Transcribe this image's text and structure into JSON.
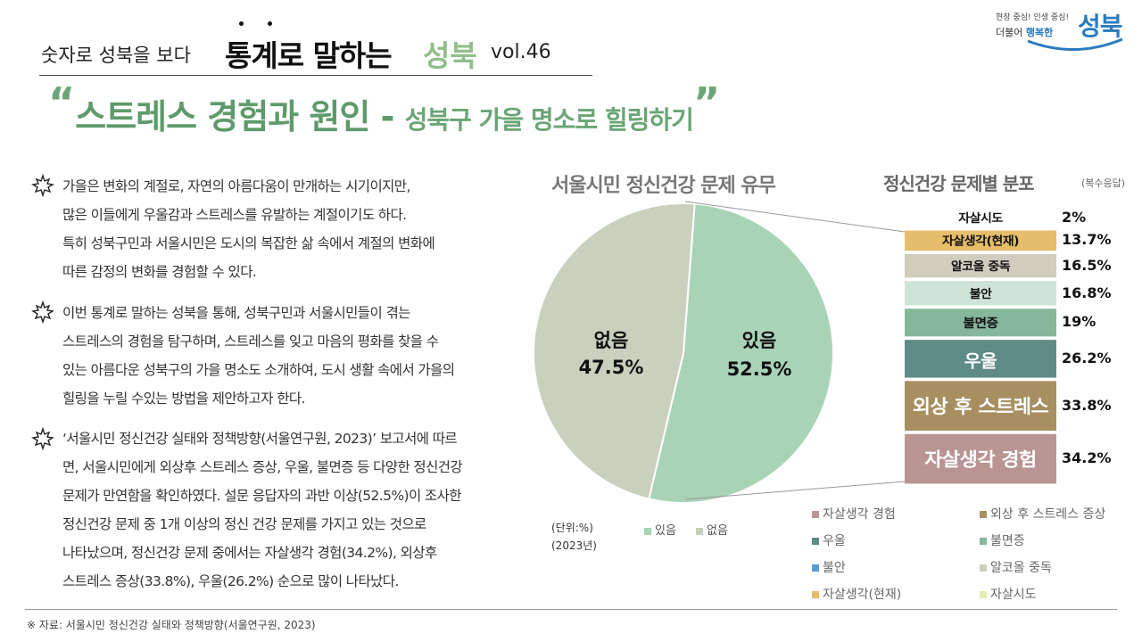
{
  "header": {
    "pre_title": "숫자로 성북을 보다",
    "main_title": "통계로 말하는",
    "brand_word": "성북",
    "volume": "vol.46"
  },
  "logo": {
    "tagline_a": "현장 중심!",
    "tagline_b": "인생 중심!",
    "line_a": "더불어",
    "line_b": "행복한",
    "main": "성북"
  },
  "headline": {
    "open_quote": "“",
    "main": "스트레스 경험과 원인",
    "dash": " - ",
    "sub": "성북구 가을 명소로 힐링하기",
    "close_quote": "”"
  },
  "paragraphs": [
    [
      "가을은 변화의 계절로, 자연의 아름다움이 만개하는 시기이지만,",
      "많은 이들에게 우울감과 스트레스를 유발하는 계절이기도 하다.",
      "특히 성북구민과 서울시민은 도시의 복잡한 삶 속에서 계절의 변화에",
      "따른 감정의 변화를 경험할 수 있다."
    ],
    [
      "이번 통계로 말하는 성북을 통해, 성북구민과 서울시민들이 겪는",
      "스트레스의 경험을 탐구하며, 스트레스를 잊고 마음의 평화를 찾을 수",
      "있는 아름다운 성북구의 가을 명소도 소개하여, 도시 생활 속에서 가을의",
      "힐링을 누릴 수있는 방법을 제안하고자 한다."
    ],
    [
      "‘서울시민 정신건강 실태와 정책방향(서울연구원, 2023)’ 보고서에 따르",
      "면, 서울시민에게 외상후 스트레스 증상, 우울, 불면증 등 다양한 정신건강",
      "문제가 만연함을 확인하였다. 설문 응답자의 과반 이상(52.5%)이 조사한",
      "정신건강 문제 중 1개 이상의 정신 건강 문제를 가지고 있는 것으로",
      "나타났으며, 정신건강 문제 중에서는 자살생각 경험(34.2%), 외상후",
      "스트레스 증상(33.8%), 우울(26.2%) 순으로 많이 나타났다."
    ]
  ],
  "chart_data": [
    {
      "type": "pie",
      "title": "서울시민 정신건강 문제 유무",
      "categories": [
        "있음",
        "없음"
      ],
      "values": [
        52.5,
        47.5
      ],
      "value_labels": [
        "52.5%",
        "47.5%"
      ],
      "colors": [
        "#a9d3b6",
        "#c9d0bd"
      ],
      "legend": [
        "있음",
        "없음"
      ],
      "legend_placement": "bottom",
      "unit_note": [
        "(단위:%)",
        "(2023년)"
      ]
    },
    {
      "type": "bar",
      "stacked": true,
      "title": "정신건강 문제별 분포",
      "note": "(복수응답)",
      "categories": [
        "자살시도",
        "자살생각(현재)",
        "알코올 중독",
        "불안",
        "불면증",
        "우울",
        "외상 후 스트레스",
        "자살생각 경험"
      ],
      "values": [
        2,
        13.7,
        16.5,
        16.8,
        19,
        26.2,
        33.8,
        34.2
      ],
      "value_labels": [
        "2%",
        "13.7%",
        "16.5%",
        "16.8%",
        "19%",
        "26.2%",
        "33.8%",
        "34.2%"
      ],
      "colors": [
        "#e3ebb8",
        "#e6bd6a",
        "#d0cdbf",
        "#cfe3d5",
        "#86b79a",
        "#5f8b86",
        "#a88f62",
        "#b89592"
      ],
      "legend": [
        "자살생각 경험",
        "외상 후 스트레스 증상",
        "우울",
        "불면증",
        "불안",
        "알코올 중독",
        "자살생각(현재)",
        "자살시도"
      ],
      "legend_colors": [
        "#b89592",
        "#a88f62",
        "#5f8b86",
        "#86b79a",
        "#5b9bd5",
        "#d0cdbf",
        "#e6bd6a",
        "#e3ebb8"
      ]
    }
  ],
  "footer": "※ 자료: 서울시민 정신건강 실태와 정책방향(서울연구원, 2023)"
}
